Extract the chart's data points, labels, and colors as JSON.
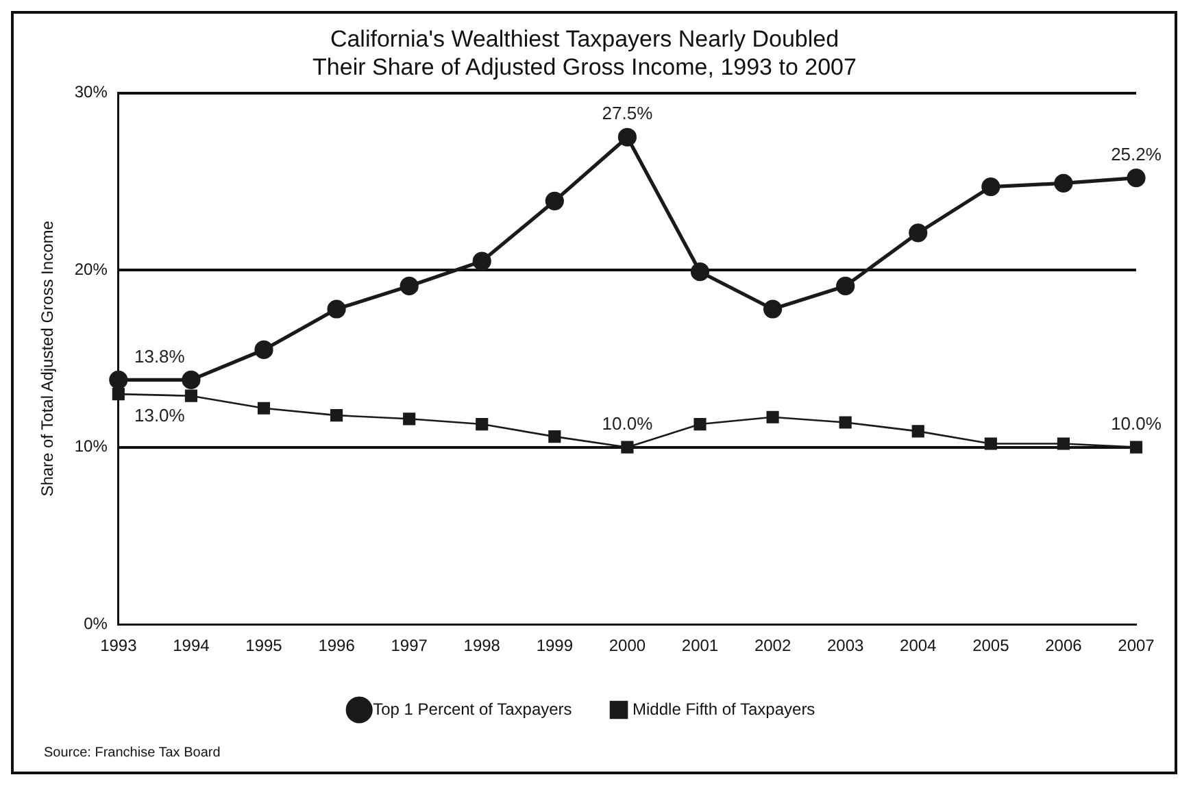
{
  "chart_data": {
    "type": "line",
    "title": "California's Wealthiest Taxpayers Nearly Doubled\nTheir Share of Adjusted Gross Income, 1993 to 2007",
    "ylabel": "Share of Total Adjusted Gross Income",
    "categories": [
      "1993",
      "1994",
      "1995",
      "1996",
      "1997",
      "1998",
      "1999",
      "2000",
      "2001",
      "2002",
      "2003",
      "2004",
      "2005",
      "2006",
      "2007"
    ],
    "series": [
      {
        "name": "Top 1 Percent of Taxpayers",
        "color": "#1a1a1a",
        "marker": "circle",
        "values": [
          13.8,
          13.8,
          15.5,
          17.8,
          19.1,
          20.5,
          23.9,
          27.5,
          19.9,
          17.8,
          19.1,
          22.1,
          24.7,
          24.9,
          25.2
        ],
        "value_labels": [
          "13.8%",
          null,
          null,
          null,
          null,
          null,
          null,
          "27.5%",
          null,
          null,
          null,
          null,
          null,
          null,
          "25.2%"
        ]
      },
      {
        "name": "Middle Fifth of Taxpayers",
        "color": "#1a1a1a",
        "marker": "square",
        "values": [
          13.0,
          12.9,
          12.2,
          11.8,
          11.6,
          11.3,
          10.6,
          10.0,
          11.3,
          11.7,
          11.4,
          10.9,
          10.2,
          10.2,
          10.0
        ],
        "value_labels": [
          "13.0%",
          null,
          null,
          null,
          null,
          null,
          null,
          "10.0%",
          null,
          null,
          null,
          null,
          null,
          null,
          "10.0%"
        ]
      }
    ],
    "ylim": [
      0,
      30
    ],
    "yticks": [
      {
        "value": 0,
        "label": "0%"
      },
      {
        "value": 10,
        "label": "10%"
      },
      {
        "value": 20,
        "label": "20%"
      },
      {
        "value": 30,
        "label": "30%"
      }
    ],
    "grid": "y",
    "legend": "bottom",
    "line_style": "solid",
    "annotations": [
      "Source: Franchise Tax Board"
    ]
  }
}
